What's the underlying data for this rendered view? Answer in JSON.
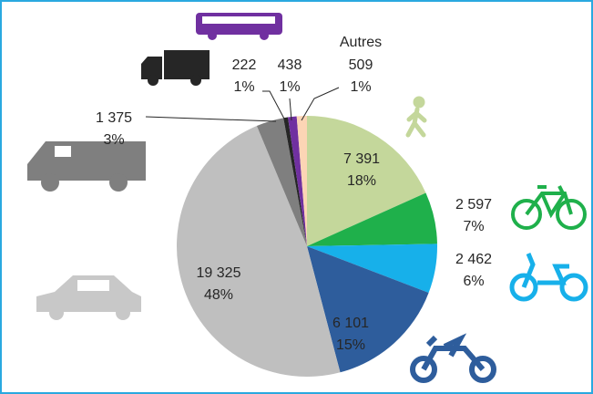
{
  "chart_data": {
    "type": "pie",
    "categories": [
      null,
      null,
      null,
      null,
      null,
      null,
      null,
      null,
      "Autres"
    ],
    "values": [
      7391,
      2597,
      2462,
      6101,
      19325,
      1375,
      222,
      438,
      509
    ],
    "value_labels": [
      "7 391",
      "2 597",
      "2 462",
      "6 101",
      "19 325",
      "1 375",
      "222",
      "438",
      "509"
    ],
    "percents": [
      18,
      7,
      6,
      15,
      48,
      3,
      1,
      1,
      1
    ],
    "percent_labels": [
      "18%",
      "7%",
      "6%",
      "15%",
      "48%",
      "3%",
      "1%",
      "1%",
      "1%"
    ],
    "colors": [
      "#c4d79b",
      "#1fb04b",
      "#17b0ea",
      "#2e5d9c",
      "#bfbfbf",
      "#7f7f7f",
      "#262626",
      "#7030a0",
      "#fcd5b5"
    ]
  }
}
